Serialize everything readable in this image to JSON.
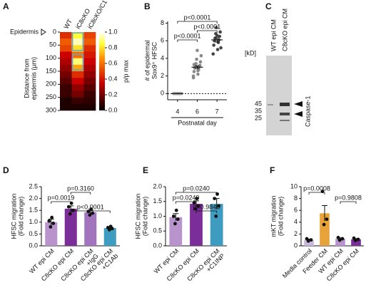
{
  "panels": [
    "A",
    "B",
    "C",
    "D",
    "E",
    "F"
  ],
  "gel": {
    "lanes": [
      "WT epi CM",
      "C8cKO epi CM"
    ],
    "unit": "[kD]",
    "markers": [
      "45",
      "35",
      "25"
    ],
    "band_label": "Caspase-1"
  },
  "chart_data": [
    {
      "type": "heatmap",
      "columns": [
        "WT",
        "iC8cKO",
        "iC8cKO/C1⁻/⁻"
      ],
      "annotation": "Epidermis",
      "ylabel": [
        "Distance from",
        "epidermis (µm)"
      ],
      "bins": [
        0,
        25,
        50,
        75,
        100,
        125,
        150,
        175,
        200,
        225,
        250,
        275,
        300
      ],
      "values": [
        [
          0.45,
          0.55,
          0.5,
          0.35,
          0.3,
          0.25,
          0.2,
          0.15,
          0.1,
          0.1,
          0.05,
          0.05
        ],
        [
          0.85,
          0.95,
          0.8,
          0.6,
          0.9,
          0.7,
          0.45,
          0.35,
          0.25,
          0.2,
          0.1,
          0.05
        ],
        [
          0.5,
          0.55,
          0.45,
          0.4,
          0.35,
          0.3,
          0.25,
          0.2,
          0.15,
          0.1,
          0.08,
          0.05
        ]
      ],
      "ylim": [
        0,
        300
      ],
      "yticks": [
        0,
        50,
        100,
        150,
        200,
        250,
        300
      ],
      "clim": [
        0,
        1
      ],
      "cticks": [
        {
          "value": 0,
          "label": "0.0"
        },
        {
          "value": 0.2,
          "label": "0.2"
        },
        {
          "value": 0.4,
          "label": "0.4"
        },
        {
          "value": 0.6,
          "label": "0.6"
        },
        {
          "value": 0.8,
          "label": "0.8"
        },
        {
          "value": 1,
          "label": "1.0"
        }
      ],
      "clabel": "p/p max"
    },
    {
      "type": "dotplot",
      "categories": [
        "4",
        "6",
        "7"
      ],
      "xlabel": "Postnatal day",
      "ylabel": [
        "# of epidermal",
        "Sox9⁺ HFSC"
      ],
      "colors": [
        "#aaaaaa",
        "#888888",
        "#444444"
      ],
      "points": [
        [
          0,
          0,
          0,
          0,
          0,
          0,
          0,
          0,
          0,
          0,
          0,
          0,
          0,
          0
        ],
        [
          1.8,
          2.2,
          2.5,
          2.7,
          2.9,
          3.0,
          3.1,
          3.2,
          3.4,
          3.6,
          3.9,
          4.3,
          4.9,
          2.0,
          2.6,
          3.3
        ],
        [
          4.5,
          5.0,
          5.5,
          5.8,
          6.0,
          6.1,
          6.3,
          6.5,
          6.8,
          7.0,
          7.5,
          5.2,
          6.6
        ]
      ],
      "values": [
        0,
        3.0,
        6.1
      ],
      "errors": [
        0,
        0.15,
        0.25
      ],
      "ylim": [
        -0.7,
        8.2
      ],
      "yticks": [
        0,
        2,
        4,
        6,
        8
      ],
      "brackets": [
        {
          "from": 0,
          "to": 2,
          "label": "p<0.0001"
        },
        {
          "from": 1,
          "to": 2,
          "label": "p<0.0001"
        },
        {
          "from": 0,
          "to": 1,
          "label": "p<0.0001"
        }
      ]
    },
    {
      "type": "bar",
      "ylabel": [
        "HFSC migration",
        "(Fold change)"
      ],
      "categories": [
        [
          "WT epi CM"
        ],
        [
          "C8cKO epi CM"
        ],
        [
          "C8cKO epi CM",
          "+IgG"
        ],
        [
          "C8cKO epi CM",
          "+C1Ab"
        ]
      ],
      "colors": [
        "#b893cc",
        "#7b2d98",
        "#a274bd",
        "#3d9cc0"
      ],
      "values": [
        1.0,
        1.57,
        1.42,
        0.75
      ],
      "errors": [
        0.13,
        0.12,
        0.09,
        0.04
      ],
      "points": [
        [
          0.8,
          0.95,
          1.05,
          1.2
        ],
        [
          1.35,
          1.5,
          1.65,
          1.8
        ],
        [
          1.3,
          1.38,
          1.45,
          1.55
        ],
        [
          0.68,
          0.73,
          0.77,
          0.82
        ]
      ],
      "ylim": [
        0,
        2.5
      ],
      "yticks": [
        {
          "value": 0,
          "label": "0.0"
        },
        {
          "value": 0.5,
          "label": "0.5"
        },
        {
          "value": 1,
          "label": "1.0"
        },
        {
          "value": 1.5,
          "label": "1.5"
        },
        {
          "value": 2,
          "label": "2.0"
        },
        {
          "value": 2.5,
          "label": "2.5"
        }
      ],
      "brackets": [
        {
          "from": 1,
          "to": 2,
          "label": "p=0.3160"
        },
        {
          "from": 0,
          "to": 1,
          "label": "p=0.0019"
        },
        {
          "from": 1,
          "to": 3,
          "label": "p<0.0001"
        }
      ]
    },
    {
      "type": "bar",
      "ylabel": [
        "HFSC migration",
        "(Fold change)"
      ],
      "categories": [
        [
          "WT epi CM"
        ],
        [
          "C8cKO epi CM"
        ],
        [
          "C8cKO epi CM",
          "+C1INP"
        ]
      ],
      "colors": [
        "#b893cc",
        "#7b2d98",
        "#3d9cc0"
      ],
      "values": [
        0.97,
        1.42,
        1.42
      ],
      "errors": [
        0.12,
        0.1,
        0.18
      ],
      "points": [
        [
          0.75,
          0.9,
          1.0,
          1.2
        ],
        [
          1.25,
          1.35,
          1.45,
          1.6
        ],
        [
          1.0,
          1.35,
          1.6,
          1.75
        ]
      ],
      "ylim": [
        0,
        2
      ],
      "yticks": [
        {
          "value": 0,
          "label": "0.0"
        },
        {
          "value": 0.5,
          "label": "0.5"
        },
        {
          "value": 1,
          "label": "1.0"
        },
        {
          "value": 1.5,
          "label": "1.5"
        },
        {
          "value": 2,
          "label": "2.0"
        }
      ],
      "brackets": [
        {
          "from": 0,
          "to": 2,
          "label": "p=0.0240"
        },
        {
          "from": 0,
          "to": 1,
          "label": "p=0.0249"
        },
        {
          "from": 1,
          "to": 2,
          "label": "p=0.9846"
        }
      ]
    },
    {
      "type": "bar",
      "ylabel": [
        "mKT migration",
        "(Fold change)"
      ],
      "categories": [
        [
          "Media control"
        ],
        [
          "Feeder CM"
        ],
        [
          "WT epi CM"
        ],
        [
          "C8cKO epi CM"
        ]
      ],
      "colors": [
        "#c9b6dd",
        "#e8a23a",
        "#b893cc",
        "#7b2d98"
      ],
      "values": [
        1.0,
        5.5,
        1.2,
        1.1
      ],
      "errors": [
        0.15,
        1.3,
        0.15,
        0.12
      ],
      "points": [
        [
          0.8,
          1.0,
          1.2
        ],
        [
          3.6,
          4.5,
          9.2
        ],
        [
          0.95,
          1.2,
          1.4
        ],
        [
          0.9,
          1.1,
          1.3
        ]
      ],
      "ylim": [
        0,
        10
      ],
      "yticks": [
        0,
        2,
        4,
        6,
        8,
        10
      ],
      "brackets": [
        {
          "from": 0,
          "to": 1,
          "label": "p=0.0008"
        },
        {
          "from": 2,
          "to": 3,
          "label": "p=0.9808"
        }
      ]
    }
  ]
}
